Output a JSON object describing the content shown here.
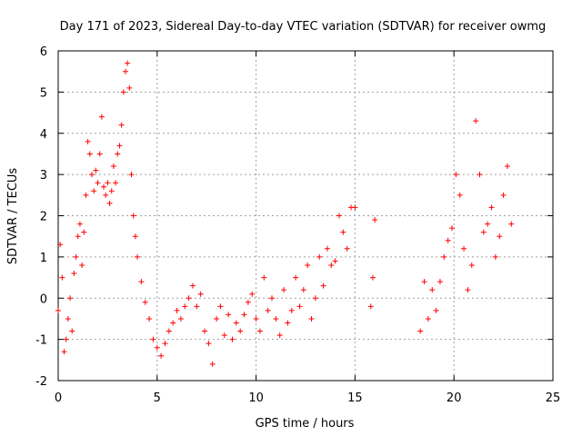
{
  "chart_data": {
    "type": "scatter",
    "title": "Day 171 of 2023, Sidereal Day-to-day VTEC variation (SDTVAR) for receiver owmg",
    "xlabel": "GPS time / hours",
    "ylabel": "SDTVAR / TECUs",
    "xlim": [
      0,
      25
    ],
    "ylim": [
      -2,
      6
    ],
    "x_ticks": [
      0,
      5,
      10,
      15,
      20,
      25
    ],
    "y_ticks": [
      -2,
      -1,
      0,
      1,
      2,
      3,
      4,
      5,
      6
    ],
    "grid": true,
    "marker": "plus",
    "color": "#ff0000",
    "series": [
      {
        "name": "SDTVAR",
        "x": [
          0.0,
          0.1,
          0.2,
          0.3,
          0.4,
          0.5,
          0.6,
          0.7,
          0.8,
          0.9,
          1.0,
          1.1,
          1.2,
          1.3,
          1.4,
          1.5,
          1.6,
          1.7,
          1.8,
          1.9,
          2.0,
          2.1,
          2.2,
          2.3,
          2.4,
          2.5,
          2.6,
          2.7,
          2.8,
          2.9,
          3.0,
          3.1,
          3.2,
          3.3,
          3.4,
          3.5,
          3.6,
          3.7,
          3.8,
          3.9,
          4.0,
          4.2,
          4.4,
          4.6,
          4.8,
          5.0,
          5.2,
          5.4,
          5.6,
          5.8,
          6.0,
          6.2,
          6.4,
          6.6,
          6.8,
          7.0,
          7.2,
          7.4,
          7.6,
          7.8,
          8.0,
          8.2,
          8.4,
          8.6,
          8.8,
          9.0,
          9.2,
          9.4,
          9.6,
          9.8,
          10.0,
          10.2,
          10.4,
          10.6,
          10.8,
          11.0,
          11.2,
          11.4,
          11.6,
          11.8,
          12.0,
          12.2,
          12.4,
          12.6,
          12.8,
          13.0,
          13.2,
          13.4,
          13.6,
          13.8,
          14.0,
          14.2,
          14.4,
          14.6,
          14.8,
          15.0,
          15.8,
          15.9,
          16.0,
          18.3,
          18.5,
          18.7,
          18.9,
          19.1,
          19.3,
          19.5,
          19.7,
          19.9,
          20.1,
          20.3,
          20.5,
          20.7,
          20.9,
          21.1,
          21.3,
          21.5,
          21.7,
          21.9,
          22.1,
          22.3,
          22.5,
          22.7,
          22.9
        ],
        "y": [
          -0.3,
          1.3,
          0.5,
          -1.3,
          -1.0,
          -0.5,
          0.0,
          -0.8,
          0.6,
          1.0,
          1.5,
          1.8,
          0.8,
          1.6,
          2.5,
          3.8,
          3.5,
          3.0,
          2.6,
          3.1,
          2.8,
          3.5,
          4.4,
          2.7,
          2.5,
          2.8,
          2.3,
          2.6,
          3.2,
          2.8,
          3.5,
          3.7,
          4.2,
          5.0,
          5.5,
          5.7,
          5.1,
          3.0,
          2.0,
          1.5,
          1.0,
          0.4,
          -0.1,
          -0.5,
          -1.0,
          -1.2,
          -1.4,
          -1.1,
          -0.8,
          -0.6,
          -0.3,
          -0.5,
          -0.2,
          0.0,
          0.3,
          -0.2,
          0.1,
          -0.8,
          -1.1,
          -1.6,
          -0.5,
          -0.2,
          -0.9,
          -0.4,
          -1.0,
          -0.6,
          -0.8,
          -0.4,
          -0.1,
          0.1,
          -0.5,
          -0.8,
          0.5,
          -0.3,
          0.0,
          -0.5,
          -0.9,
          0.2,
          -0.6,
          -0.3,
          0.5,
          -0.2,
          0.2,
          0.8,
          -0.5,
          0.0,
          1.0,
          0.3,
          1.2,
          0.8,
          0.9,
          2.0,
          1.6,
          1.2,
          2.2,
          2.2,
          -0.2,
          0.5,
          1.9,
          -0.8,
          0.4,
          -0.5,
          0.2,
          -0.3,
          0.4,
          1.0,
          1.4,
          1.7,
          3.0,
          2.5,
          1.2,
          0.2,
          0.8,
          4.3,
          3.0,
          1.6,
          1.8,
          2.2,
          1.0,
          1.5,
          2.5,
          3.2,
          1.8
        ]
      }
    ]
  }
}
